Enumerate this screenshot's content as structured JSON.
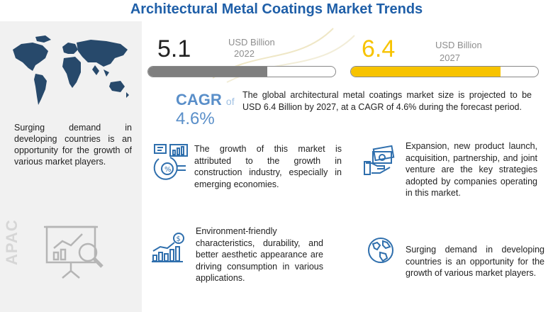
{
  "title": "Architectural Metal Coatings Market Trends",
  "chart_data": {
    "type": "bar",
    "categories": [
      "2022",
      "2027"
    ],
    "values": [
      5.1,
      6.4
    ],
    "value_labels": [
      "5.1",
      "6.4"
    ],
    "unit": "USD Billion",
    "colors": [
      "#7f7f7f",
      "#f7c300"
    ],
    "cagr_label": "CAGR",
    "cagr_of": "of",
    "cagr_value": "4.6%"
  },
  "summary": "The global architectural metal coatings market size is projected to be USD 6.4 Billion by 2027, at a CAGR of 4.6% during the forecast period.",
  "left_panel": {
    "text": "Surging demand in developing countries is an opportunity for the growth of various market players.",
    "region_label": "APAC"
  },
  "blocks": {
    "growth": "The growth of this market is attributed to the growth in construction industry, especially in emerging economies.",
    "drivers": "Environment-friendly characteristics, durability, and better aesthetic appearance are driving consumption in various applications.",
    "strategies": "Expansion, new product launch, acquisition, partnership, and joint venture are the key strategies adopted by companies operating in this market.",
    "opportunity": "Surging demand in developing countries is an opportunity for the growth of various market players."
  },
  "icons": {
    "growth": "analytics-icon",
    "drivers": "dollar-growth-chart-icon",
    "strategies": "money-hand-icon",
    "opportunity": "globe-icon",
    "map": "world-map-icon",
    "apac": "magnifier-chart-icon"
  }
}
